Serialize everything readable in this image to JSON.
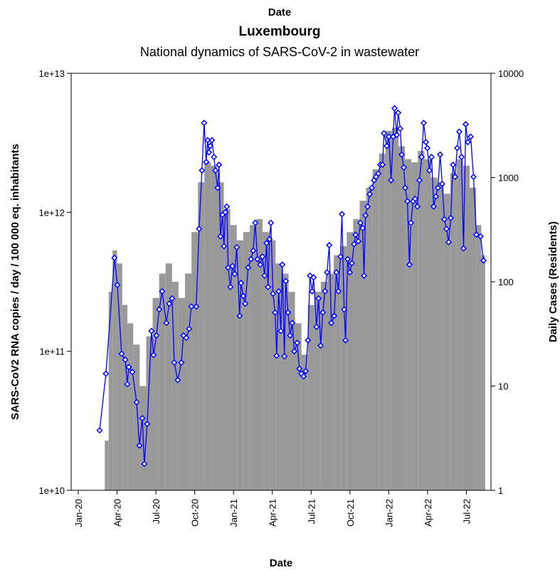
{
  "chart_data": {
    "type": "bar-line",
    "top_label": "Date",
    "title": "Luxembourg",
    "subtitle": "National dynamics of SARS-CoV-2 in wastewater",
    "xlabel": "Date",
    "ylabel": "SARS-CoV2 RNA copies / day   / 100 000 eq. inhabitants",
    "y2label": "Daily Cases (Residents)",
    "xlim": [
      -0.55,
      31.9
    ],
    "xticks": [
      {
        "value": 0,
        "label": "Jan-20"
      },
      {
        "value": 3,
        "label": "Apr-20"
      },
      {
        "value": 6,
        "label": "Jul-20"
      },
      {
        "value": 9,
        "label": "Oct-20"
      },
      {
        "value": 12,
        "label": "Jan-21"
      },
      {
        "value": 15,
        "label": "Apr-21"
      },
      {
        "value": 18,
        "label": "Jul-21"
      },
      {
        "value": 21,
        "label": "Oct-21"
      },
      {
        "value": 24,
        "label": "Jan-22"
      },
      {
        "value": 27,
        "label": "Apr-22"
      },
      {
        "value": 30,
        "label": "Jul-22"
      }
    ],
    "ylim": [
      10000000000,
      10000000000000
    ],
    "yticks": [
      {
        "value": 10000000000,
        "label": "1e+10"
      },
      {
        "value": 100000000000,
        "label": "1e+11"
      },
      {
        "value": 1000000000000,
        "label": "1e+12"
      },
      {
        "value": 10000000000000,
        "label": "1e+13"
      }
    ],
    "y2lim": [
      1,
      10000
    ],
    "y2ticks": [
      1,
      10,
      100,
      1000,
      10000
    ],
    "log_scale": true,
    "series": [
      {
        "type": "bar",
        "axis": "y2",
        "color": "#999999",
        "x": [
          2.2,
          2.5,
          2.8,
          3.2,
          3.6,
          4.0,
          4.5,
          5.0,
          5.5,
          6.0,
          6.5,
          7.0,
          7.5,
          8.0,
          8.5,
          9.0,
          9.5,
          10.0,
          10.5,
          11.0,
          11.5,
          12.0,
          12.5,
          13.0,
          13.5,
          14.0,
          14.5,
          15.0,
          15.5,
          16.0,
          16.5,
          17.0,
          17.5,
          18.0,
          18.5,
          19.0,
          19.5,
          20.0,
          20.5,
          21.0,
          21.5,
          22.0,
          22.5,
          23.0,
          23.5,
          24.0,
          24.5,
          25.0,
          25.5,
          26.0,
          26.5,
          27.0,
          27.5,
          28.0,
          28.5,
          29.0,
          29.5,
          30.0,
          30.5,
          31.0,
          31.3
        ],
        "values": [
          3,
          80,
          200,
          150,
          60,
          40,
          25,
          10,
          30,
          70,
          120,
          150,
          100,
          70,
          120,
          300,
          900,
          1400,
          1300,
          900,
          500,
          350,
          250,
          300,
          350,
          400,
          300,
          250,
          150,
          120,
          80,
          40,
          20,
          60,
          80,
          100,
          120,
          180,
          220,
          300,
          400,
          600,
          800,
          1200,
          1700,
          2800,
          3000,
          2000,
          1500,
          1400,
          1800,
          1500,
          1000,
          900,
          700,
          1100,
          1500,
          1300,
          800,
          350,
          180
        ]
      },
      {
        "type": "line",
        "axis": "y",
        "color": "#0000ff",
        "x": [
          1.65,
          2.14,
          2.8,
          3.02,
          3.35,
          3.63,
          3.79,
          3.9,
          4.18,
          4.51,
          4.73,
          4.95,
          5.11,
          5.33,
          5.66,
          5.82,
          6.04,
          6.26,
          6.48,
          6.81,
          7.03,
          7.25,
          7.42,
          7.69,
          7.97,
          8.13,
          8.35,
          8.57,
          8.74,
          9.12,
          9.34,
          9.56,
          9.73,
          9.89,
          10.0,
          10.1,
          10.2,
          10.33,
          10.49,
          10.6,
          10.77,
          10.88,
          10.99,
          11.15,
          11.26,
          11.37,
          11.48,
          11.59,
          11.76,
          11.92,
          12.09,
          12.25,
          12.47,
          12.58,
          12.75,
          12.91,
          13.13,
          13.35,
          13.52,
          13.68,
          13.85,
          14.07,
          14.23,
          14.4,
          14.56,
          14.67,
          14.78,
          14.89,
          15.05,
          15.22,
          15.33,
          15.49,
          15.66,
          15.77,
          15.93,
          16.04,
          16.21,
          16.37,
          16.54,
          16.7,
          16.92,
          17.09,
          17.25,
          17.42,
          17.58,
          17.75,
          17.91,
          18.08,
          18.19,
          18.41,
          18.57,
          18.74,
          18.9,
          19.07,
          19.23,
          19.4,
          19.56,
          19.78,
          19.95,
          20.11,
          20.27,
          20.38,
          20.55,
          20.66,
          20.82,
          20.99,
          21.15,
          21.32,
          21.43,
          21.65,
          21.81,
          21.98,
          22.09,
          22.2,
          22.36,
          22.53,
          22.69,
          22.86,
          23.02,
          23.19,
          23.35,
          23.52,
          23.63,
          23.85,
          24.01,
          24.18,
          24.34,
          24.45,
          24.62,
          24.73,
          24.89,
          25.0,
          25.16,
          25.27,
          25.44,
          25.6,
          25.71,
          25.88,
          26.04,
          26.21,
          26.37,
          26.54,
          26.7,
          26.87,
          26.98,
          27.14,
          27.31,
          27.47,
          27.64,
          27.8,
          27.97,
          28.13,
          28.3,
          28.46,
          28.63,
          28.79,
          28.96,
          29.12,
          29.29,
          29.45,
          29.62,
          29.78,
          29.95,
          30.11,
          30.33,
          30.55,
          30.77,
          31.1,
          31.32
        ],
        "values": [
          27000000000.0,
          69000000000.0,
          470000000000.0,
          300000000000.0,
          96000000000.0,
          87000000000.0,
          58000000000.0,
          77000000000.0,
          71000000000.0,
          43000000000.0,
          21000000000.0,
          33000000000.0,
          15500000000.0,
          30000000000.0,
          140000000000.0,
          94000000000.0,
          130000000000.0,
          200000000000.0,
          270000000000.0,
          160000000000.0,
          220000000000.0,
          240000000000.0,
          83000000000.0,
          62000000000.0,
          83000000000.0,
          130000000000.0,
          125000000000.0,
          145000000000.0,
          210000000000.0,
          210000000000.0,
          760000000000.0,
          2000000000000.0,
          4400000000000.0,
          2300000000000.0,
          3300000000000.0,
          2700000000000.0,
          3000000000000.0,
          3300000000000.0,
          2500000000000.0,
          2000000000000.0,
          1500000000000.0,
          2200000000000.0,
          670000000000.0,
          960000000000.0,
          570000000000.0,
          1000000000000.0,
          1100000000000.0,
          400000000000.0,
          290000000000.0,
          410000000000.0,
          360000000000.0,
          560000000000.0,
          180000000000.0,
          310000000000.0,
          250000000000.0,
          220000000000.0,
          400000000000.0,
          460000000000.0,
          530000000000.0,
          840000000000.0,
          460000000000.0,
          420000000000.0,
          480000000000.0,
          350000000000.0,
          600000000000.0,
          290000000000.0,
          640000000000.0,
          840000000000.0,
          260000000000.0,
          190000000000.0,
          93000000000.0,
          270000000000.0,
          140000000000.0,
          420000000000.0,
          92000000000.0,
          320000000000.0,
          190000000000.0,
          130000000000.0,
          160000000000.0,
          100000000000.0,
          115000000000.0,
          75000000000.0,
          69000000000.0,
          66000000000.0,
          72000000000.0,
          120000000000.0,
          350000000000.0,
          270000000000.0,
          340000000000.0,
          150000000000.0,
          240000000000.0,
          110000000000.0,
          190000000000.0,
          270000000000.0,
          370000000000.0,
          580000000000.0,
          160000000000.0,
          180000000000.0,
          370000000000.0,
          270000000000.0,
          480000000000.0,
          970000000000.0,
          200000000000.0,
          120000000000.0,
          460000000000.0,
          370000000000.0,
          430000000000.0,
          590000000000.0,
          690000000000.0,
          620000000000.0,
          840000000000.0,
          770000000000.0,
          350000000000.0,
          950000000000.0,
          1100000000000.0,
          1350000000000.0,
          1500000000000.0,
          1700000000000.0,
          1800000000000.0,
          1900000000000.0,
          2200000000000.0,
          2200000000000.0,
          3700000000000.0,
          3000000000000.0,
          3500000000000.0,
          1700000000000.0,
          3500000000000.0,
          5600000000000.0,
          3600000000000.0,
          5200000000000.0,
          4000000000000.0,
          2600000000000.0,
          2100000000000.0,
          1500000000000.0,
          1200000000000.0,
          420000000000.0,
          840000000000.0,
          1200000000000.0,
          1250000000000.0,
          1100000000000.0,
          1700000000000.0,
          2500000000000.0,
          4400000000000.0,
          3200000000000.0,
          2900000000000.0,
          2000000000000.0,
          2500000000000.0,
          1100000000000.0,
          1300000000000.0,
          1500000000000.0,
          2600000000000.0,
          1600000000000.0,
          890000000000.0,
          760000000000.0,
          610000000000.0,
          910000000000.0,
          2200000000000.0,
          1800000000000.0,
          2900000000000.0,
          3800000000000.0,
          2500000000000.0,
          550000000000.0,
          4300000000000.0,
          3200000000000.0,
          3500000000000.0,
          1800000000000.0,
          690000000000.0,
          670000000000.0,
          450000000000.0
        ]
      }
    ]
  }
}
